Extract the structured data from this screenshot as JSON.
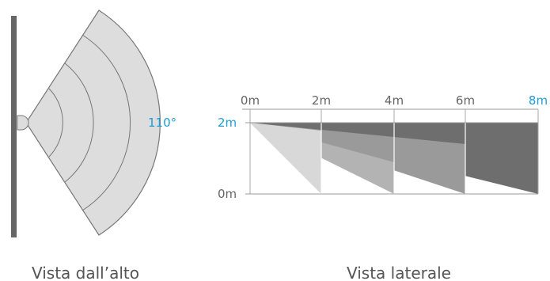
{
  "top_view": {
    "angle_label": "110°",
    "caption": "Vista dall’alto"
  },
  "side_view": {
    "distance_labels": [
      "0m",
      "2m",
      "4m",
      "6m",
      "8m"
    ],
    "height_top": "2m",
    "height_bottom": "0m",
    "caption": "Vista laterale"
  },
  "colors": {
    "accent": "#1f9bd8",
    "zone_fill": "#dddddd",
    "zone_dark": "#6e6e6e",
    "wall": "#666666"
  }
}
